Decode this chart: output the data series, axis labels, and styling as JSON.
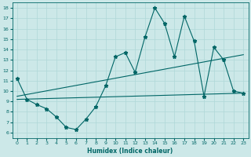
{
  "xlabel": "Humidex (Indice chaleur)",
  "bg_color": "#cce8e8",
  "line_color": "#006666",
  "xlim": [
    -0.5,
    23.5
  ],
  "ylim": [
    5.5,
    18.5
  ],
  "xticks": [
    0,
    1,
    2,
    3,
    4,
    5,
    6,
    7,
    8,
    9,
    10,
    11,
    12,
    13,
    14,
    15,
    16,
    17,
    18,
    19,
    20,
    21,
    22,
    23
  ],
  "yticks": [
    6,
    7,
    8,
    9,
    10,
    11,
    12,
    13,
    14,
    15,
    16,
    17,
    18
  ],
  "series_max": {
    "x": [
      0,
      1,
      2,
      3,
      4,
      5,
      6,
      7,
      8,
      9,
      10,
      11,
      12,
      13,
      14,
      15,
      16,
      17,
      18,
      19,
      20,
      21,
      22,
      23
    ],
    "y": [
      11.2,
      9.2,
      8.7,
      8.3,
      7.5,
      6.5,
      6.3,
      7.3,
      8.5,
      10.5,
      13.3,
      13.7,
      11.8,
      15.2,
      18.0,
      16.5,
      13.3,
      17.2,
      14.8,
      9.5,
      14.2,
      13.0,
      10.0,
      9.8
    ]
  },
  "series_avg": {
    "x": [
      0,
      23
    ],
    "y": [
      9.5,
      13.5
    ]
  },
  "series_min": {
    "x": [
      0,
      23
    ],
    "y": [
      9.2,
      9.8
    ]
  },
  "grid_color": "#afd8d8",
  "marker": "*",
  "markersize": 3.5
}
